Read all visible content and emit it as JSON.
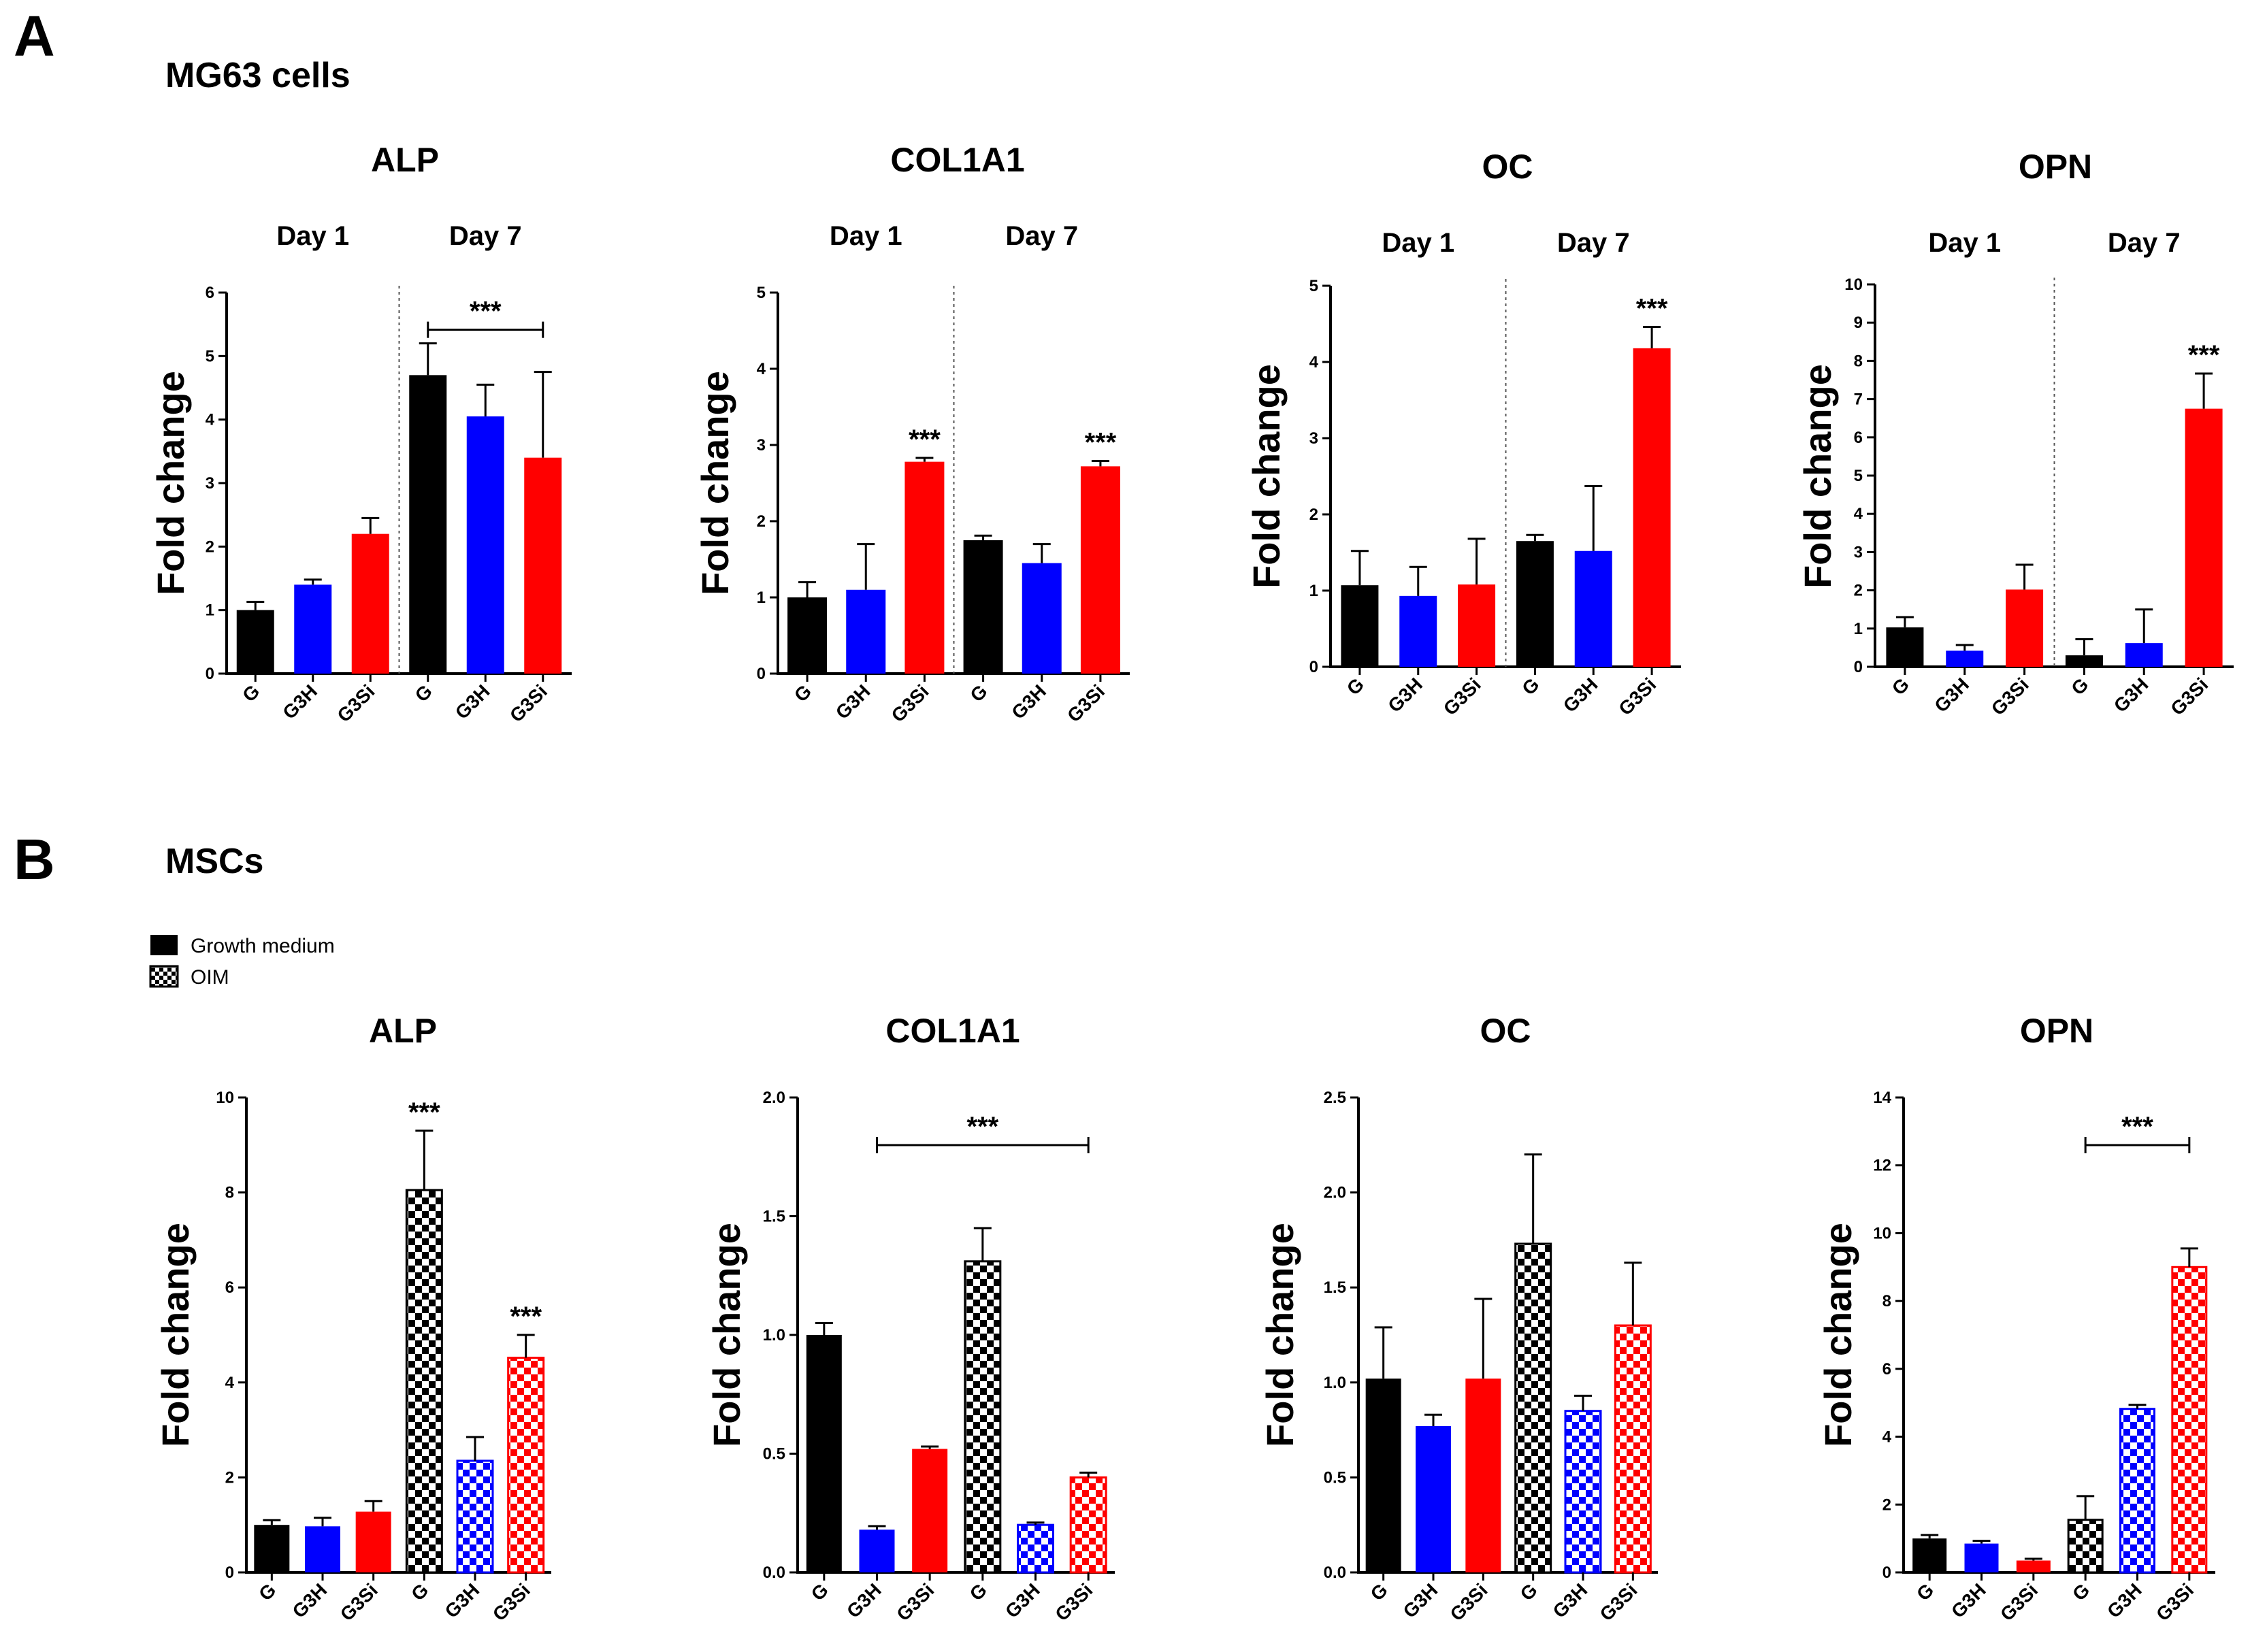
{
  "panels": {
    "A": {
      "letter": "A",
      "title": "MG63 cells"
    },
    "B": {
      "letter": "B",
      "title": "MSCs"
    }
  },
  "legend": {
    "items": [
      {
        "label": "Growth medium",
        "pattern": "solid"
      },
      {
        "label": "OIM",
        "pattern": "checker"
      }
    ]
  },
  "colors": {
    "G": "#000000",
    "G3H": "#0000ff",
    "G3Si": "#ff0000",
    "axis": "#000000"
  },
  "chart_data": [
    {
      "id": "a-alp",
      "panel": "A",
      "type": "bar",
      "title": "ALP",
      "ylabel": "Fold change",
      "ylim": [
        0,
        6
      ],
      "yticks": [
        "0",
        "1",
        "2",
        "3",
        "4",
        "5",
        "6"
      ],
      "groups": [
        "Day 1",
        "Day 7"
      ],
      "categories": [
        "G",
        "G3H",
        "G3Si",
        "G",
        "G3H",
        "G3Si"
      ],
      "values": [
        1.0,
        1.4,
        2.2,
        4.7,
        4.05,
        3.4
      ],
      "errors": [
        0.13,
        0.08,
        0.25,
        0.5,
        0.5,
        1.35
      ],
      "significance": [
        {
          "type": "bracket",
          "from": 3,
          "to": 5,
          "label": "***"
        }
      ]
    },
    {
      "id": "a-col1a1",
      "panel": "A",
      "type": "bar",
      "title": "COL1A1",
      "ylabel": "Fold change",
      "ylim": [
        0,
        5
      ],
      "yticks": [
        "0",
        "1",
        "2",
        "3",
        "4",
        "5"
      ],
      "groups": [
        "Day 1",
        "Day 7"
      ],
      "categories": [
        "G",
        "G3H",
        "G3Si",
        "G",
        "G3H",
        "G3Si"
      ],
      "values": [
        1.0,
        1.1,
        2.78,
        1.75,
        1.45,
        2.72
      ],
      "errors": [
        0.2,
        0.6,
        0.05,
        0.06,
        0.25,
        0.07
      ],
      "significance": [
        {
          "type": "star",
          "index": 2,
          "label": "***"
        },
        {
          "type": "star",
          "index": 5,
          "label": "***"
        }
      ]
    },
    {
      "id": "a-oc",
      "panel": "A",
      "type": "bar",
      "title": "OC",
      "ylabel": "Fold change",
      "ylim": [
        0,
        5
      ],
      "yticks": [
        "0",
        "1",
        "2",
        "3",
        "4",
        "5"
      ],
      "groups": [
        "Day 1",
        "Day 7"
      ],
      "categories": [
        "G",
        "G3H",
        "G3Si",
        "G",
        "G3H",
        "G3Si"
      ],
      "values": [
        1.07,
        0.93,
        1.08,
        1.65,
        1.52,
        4.18
      ],
      "errors": [
        0.45,
        0.38,
        0.6,
        0.08,
        0.85,
        0.28
      ],
      "significance": [
        {
          "type": "star",
          "index": 5,
          "label": "***"
        }
      ]
    },
    {
      "id": "a-opn",
      "panel": "A",
      "type": "bar",
      "title": "OPN",
      "ylabel": "Fold change",
      "ylim": [
        0,
        10
      ],
      "yticks": [
        "0",
        "1",
        "2",
        "3",
        "4",
        "5",
        "6",
        "7",
        "8",
        "9",
        "10"
      ],
      "groups": [
        "Day 1",
        "Day 7"
      ],
      "categories": [
        "G",
        "G3H",
        "G3Si",
        "G",
        "G3H",
        "G3Si"
      ],
      "values": [
        1.03,
        0.42,
        2.02,
        0.3,
        0.62,
        6.75
      ],
      "errors": [
        0.27,
        0.15,
        0.65,
        0.42,
        0.88,
        0.92
      ],
      "significance": [
        {
          "type": "star",
          "index": 5,
          "label": "***"
        }
      ]
    },
    {
      "id": "b-alp",
      "panel": "B",
      "type": "bar",
      "title": "ALP",
      "ylabel": "Fold change",
      "ylim": [
        0,
        10
      ],
      "yticks": [
        "0",
        "2",
        "4",
        "6",
        "8",
        "10"
      ],
      "categories": [
        "G",
        "G3H",
        "G3Si",
        "G",
        "G3H",
        "G3Si"
      ],
      "patterns": [
        "solid",
        "solid",
        "solid",
        "checker",
        "checker",
        "checker"
      ],
      "values": [
        1.0,
        0.97,
        1.28,
        8.05,
        2.35,
        4.52
      ],
      "errors": [
        0.1,
        0.18,
        0.22,
        1.25,
        0.5,
        0.48
      ],
      "significance": [
        {
          "type": "star",
          "index": 3,
          "label": "***"
        },
        {
          "type": "star",
          "index": 5,
          "label": "***"
        }
      ]
    },
    {
      "id": "b-col1a1",
      "panel": "B",
      "type": "bar",
      "title": "COL1A1",
      "ylabel": "Fold change",
      "ylim": [
        0,
        2.0
      ],
      "yticks": [
        "0.0",
        "0.5",
        "1.0",
        "1.5",
        "2.0"
      ],
      "categories": [
        "G",
        "G3H",
        "G3Si",
        "G",
        "G3H",
        "G3Si"
      ],
      "patterns": [
        "solid",
        "solid",
        "solid",
        "checker",
        "checker",
        "checker"
      ],
      "values": [
        1.0,
        0.18,
        0.52,
        1.31,
        0.2,
        0.4
      ],
      "errors": [
        0.05,
        0.015,
        0.01,
        0.14,
        0.01,
        0.02
      ],
      "significance": [
        {
          "type": "bracket",
          "from": 1,
          "to": 5,
          "label": "***"
        }
      ]
    },
    {
      "id": "b-oc",
      "panel": "B",
      "type": "bar",
      "title": "OC",
      "ylabel": "Fold change",
      "ylim": [
        0,
        2.5
      ],
      "yticks": [
        "0.0",
        "0.5",
        "1.0",
        "1.5",
        "2.0",
        "2.5"
      ],
      "categories": [
        "G",
        "G3H",
        "G3Si",
        "G",
        "G3H",
        "G3Si"
      ],
      "patterns": [
        "solid",
        "solid",
        "solid",
        "checker",
        "checker",
        "checker"
      ],
      "values": [
        1.02,
        0.77,
        1.02,
        1.73,
        0.85,
        1.3
      ],
      "errors": [
        0.27,
        0.06,
        0.42,
        0.47,
        0.08,
        0.33
      ],
      "significance": []
    },
    {
      "id": "b-opn",
      "panel": "B",
      "type": "bar",
      "title": "OPN",
      "ylabel": "Fold change",
      "ylim": [
        0,
        14
      ],
      "yticks": [
        "0",
        "2",
        "4",
        "6",
        "8",
        "10",
        "12",
        "14"
      ],
      "categories": [
        "G",
        "G3H",
        "G3Si",
        "G",
        "G3H",
        "G3Si"
      ],
      "patterns": [
        "solid",
        "solid",
        "solid",
        "checker",
        "checker",
        "checker"
      ],
      "values": [
        1.0,
        0.85,
        0.35,
        1.55,
        4.82,
        9.0
      ],
      "errors": [
        0.1,
        0.08,
        0.05,
        0.7,
        0.12,
        0.55
      ],
      "significance": [
        {
          "type": "bracket",
          "from": 3,
          "to": 5,
          "label": "***"
        }
      ]
    }
  ]
}
